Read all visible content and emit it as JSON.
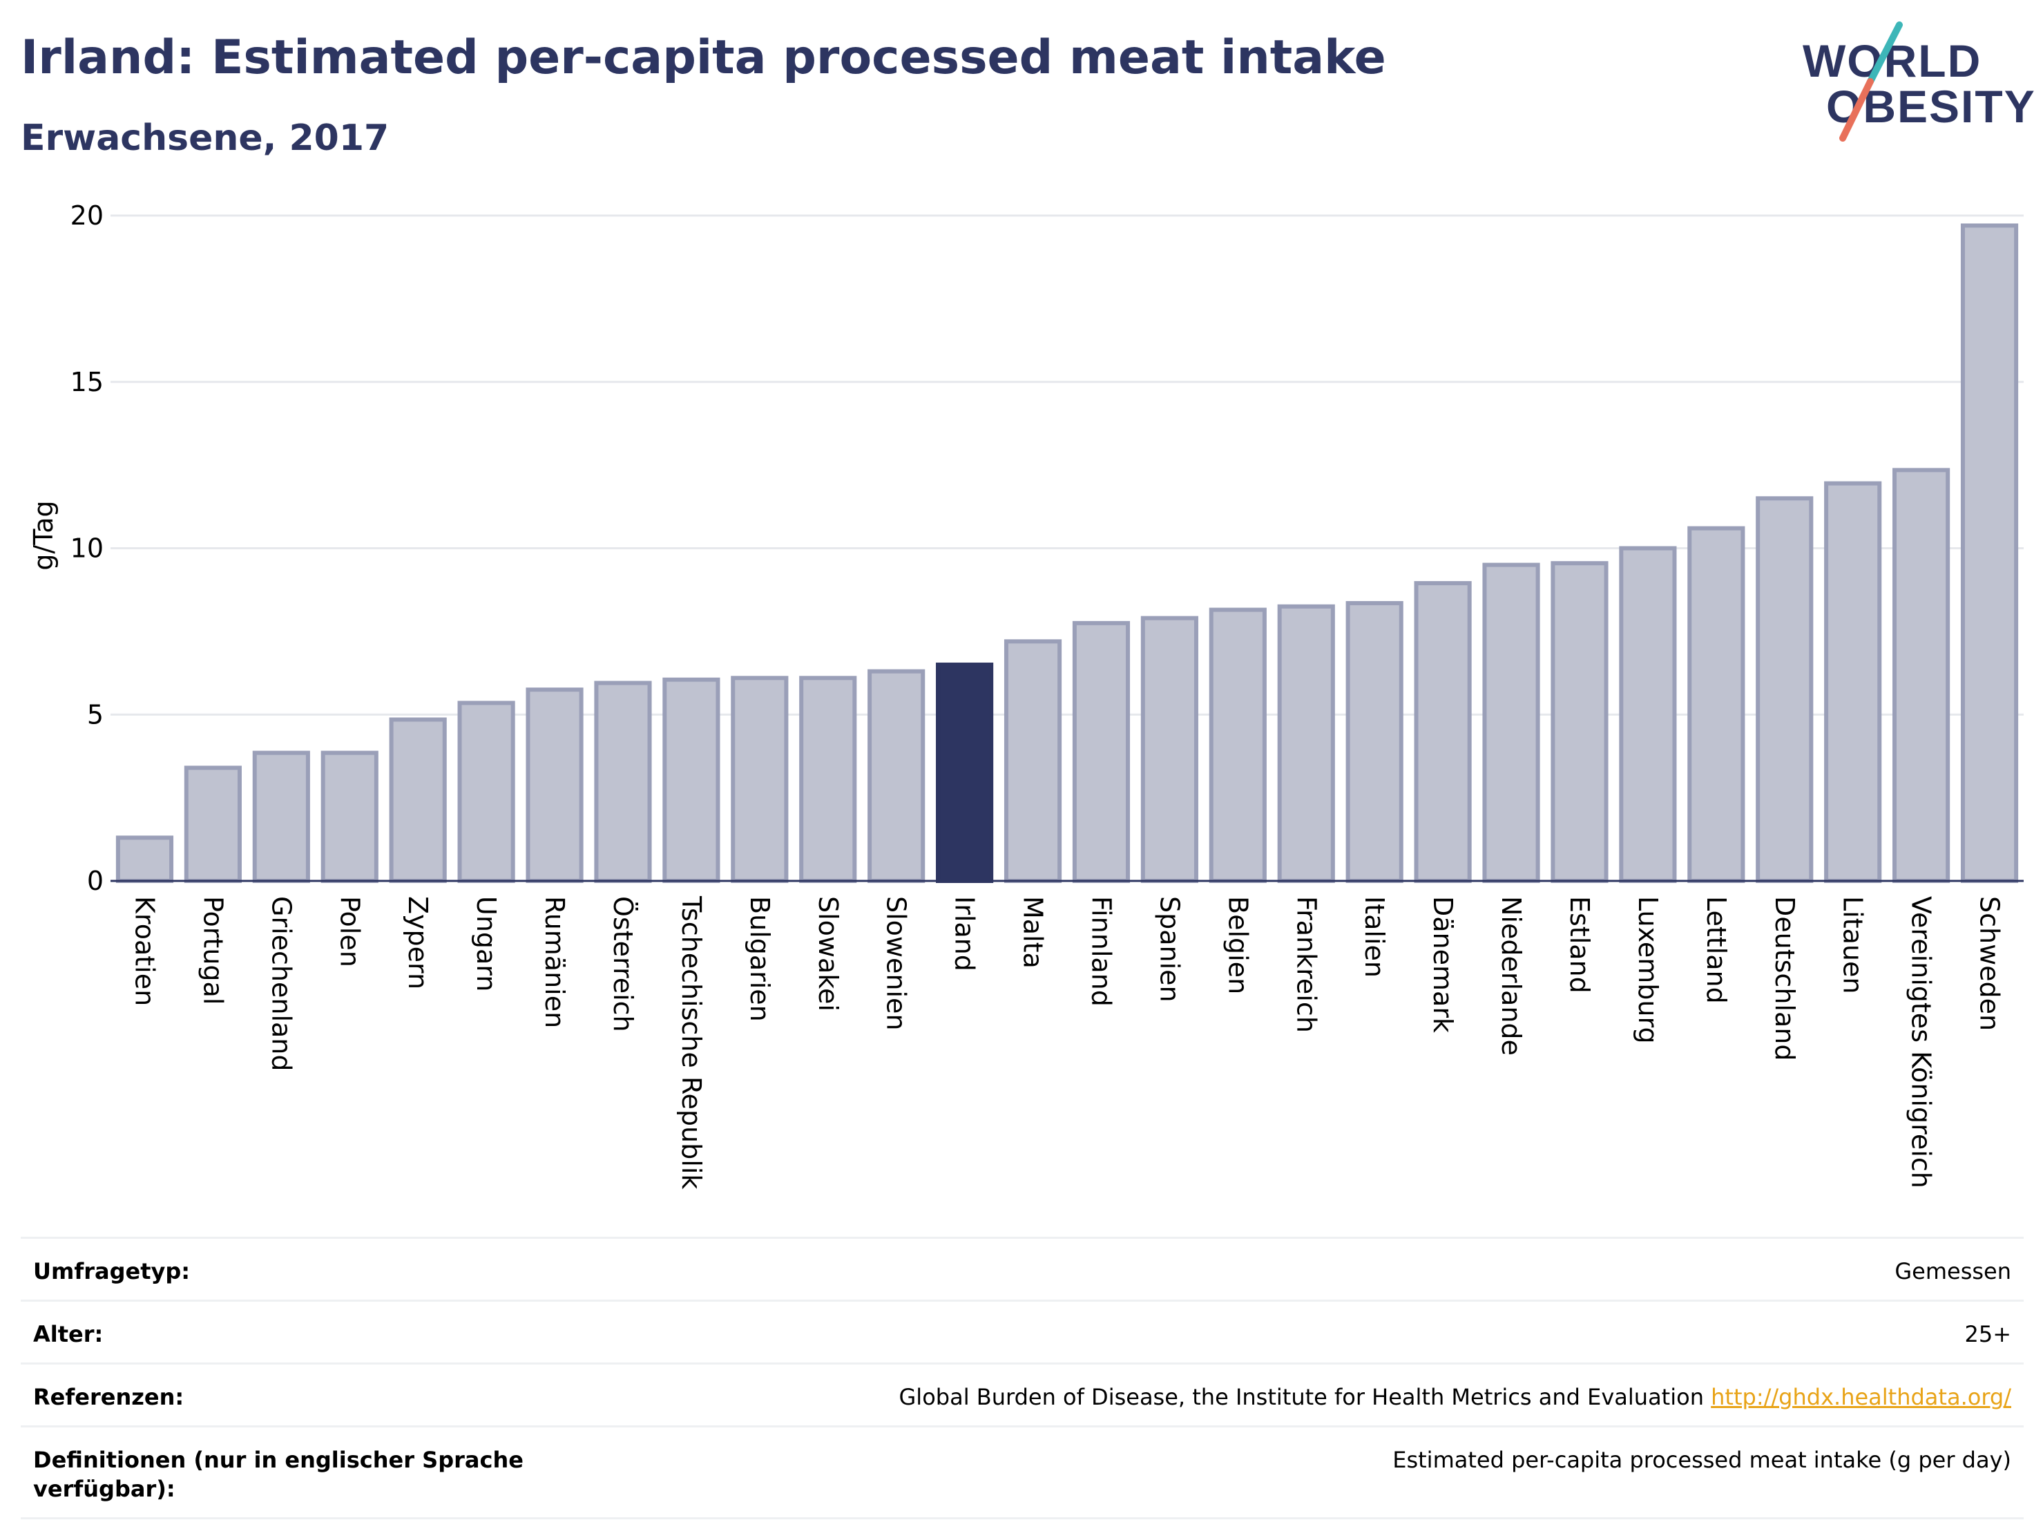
{
  "header": {
    "title": "Irland: Estimated per-capita processed meat intake",
    "subtitle": "Erwachsene, 2017"
  },
  "logo": {
    "line1": "WORLD",
    "line2": "OBESITY",
    "icon": "world-obesity-logo"
  },
  "colors": {
    "highlight": "#2d3561",
    "bar_fill": "#bfc2d0",
    "bar_stroke": "#9a9fb8",
    "grid": "#e6e8ec",
    "axis": "#2d3561",
    "slash_teal": "#3db6b8",
    "slash_coral": "#e8705a"
  },
  "chart_data": {
    "type": "bar",
    "ylabel": "g/Tag",
    "ylim": [
      0,
      20
    ],
    "yticks": [
      0,
      5,
      10,
      15,
      20
    ],
    "grid": true,
    "highlight": "Irland",
    "categories": [
      "Kroatien",
      "Portugal",
      "Griechenland",
      "Polen",
      "Zypern",
      "Ungarn",
      "Rumänien",
      "Österreich",
      "Tschechische Republik",
      "Bulgarien",
      "Slowakei",
      "Slowenien",
      "Irland",
      "Malta",
      "Finnland",
      "Spanien",
      "Belgien",
      "Frankreich",
      "Italien",
      "Dänemark",
      "Niederlande",
      "Estland",
      "Luxemburg",
      "Lettland",
      "Deutschland",
      "Litauen",
      "Vereinigtes Königreich",
      "Schweden"
    ],
    "values": [
      1.3,
      3.4,
      3.85,
      3.85,
      4.85,
      5.35,
      5.75,
      5.95,
      6.05,
      6.1,
      6.1,
      6.3,
      6.5,
      7.2,
      7.75,
      7.9,
      8.15,
      8.25,
      8.35,
      8.95,
      9.5,
      9.55,
      10.0,
      10.6,
      11.5,
      11.95,
      12.35,
      19.7
    ]
  },
  "info": [
    {
      "label": "Umfragetyp:",
      "value": "Gemessen"
    },
    {
      "label": "Alter:",
      "value": "25+"
    },
    {
      "label": "Referenzen:",
      "value": "Global Burden of Disease, the Institute for Health Metrics and Evaluation",
      "link": "http://ghdx.healthdata.org/"
    },
    {
      "label": "Definitionen (nur in englischer Sprache verfügbar):",
      "value": "Estimated per-capita processed meat intake (g per day)"
    }
  ]
}
